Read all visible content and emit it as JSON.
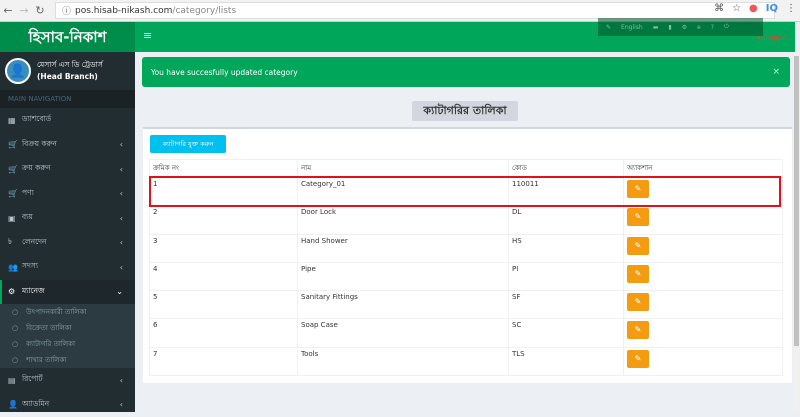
{
  "browser": {
    "url_host": "pos.hisab-nikash.com",
    "url_path": "/category/lists"
  },
  "logo": "হিসাব-নিকাশ",
  "user": {
    "name": "মেসার্স এস ডি ট্রেডার্স",
    "branch": "(Head Branch)"
  },
  "main_nav_label": "MAIN NAVIGATION",
  "sidebar": {
    "items": [
      {
        "label": "ড্যাশবোর্ড",
        "icon": "dashboard-icon",
        "chev": false
      },
      {
        "label": "বিক্রয় করুন",
        "icon": "cart-icon",
        "chev": true
      },
      {
        "label": "ক্রয় করুন",
        "icon": "cart-icon",
        "chev": true
      },
      {
        "label": "পণ্য",
        "icon": "cart-icon",
        "chev": true
      },
      {
        "label": "ব্যয়",
        "icon": "money-icon",
        "chev": true
      },
      {
        "label": "লেনদেন",
        "icon": "taka-icon",
        "chev": true
      },
      {
        "label": "সদস্য",
        "icon": "users-icon",
        "chev": true
      },
      {
        "label": "ম্যানেজ",
        "icon": "cogs-icon",
        "chev": true,
        "active": true
      }
    ],
    "subitems": [
      "উৎপাদনকারী তালিকা",
      "বিক্রেতা তালিকা",
      "ক্যাটাগরি তালিকা",
      "শাখার তালিকা"
    ],
    "bottom": [
      {
        "label": "রিপোর্ট",
        "icon": "file-icon"
      },
      {
        "label": "অ্যাডমিন",
        "icon": "user-icon"
      }
    ]
  },
  "topnav": {
    "language": "English",
    "logout": "Logout"
  },
  "alert": "You have succesfully updated category",
  "page_title": "ক্যাটাগরির তালিকা",
  "add_button": "ক্যাটাগরি যুক্ত করুন",
  "table": {
    "headers": [
      "ক্রমিক নং",
      "নাম",
      "কোড",
      "অ্যাকশান"
    ],
    "rows": [
      [
        "1",
        "Category_01",
        "110011"
      ],
      [
        "2",
        "Door Lock",
        "DL"
      ],
      [
        "3",
        "Hand Shower",
        "HS"
      ],
      [
        "4",
        "Pipe",
        "PI"
      ],
      [
        "5",
        "Sanitary Fittings",
        "SF"
      ],
      [
        "6",
        "Soap Case",
        "SC"
      ],
      [
        "7",
        "Tools",
        "TLS"
      ]
    ]
  },
  "colors": {
    "brand": "#00a65a",
    "sidebar": "#222d32",
    "edit": "#f39c12",
    "add": "#00c0ef",
    "highlight": "#e3101a"
  }
}
